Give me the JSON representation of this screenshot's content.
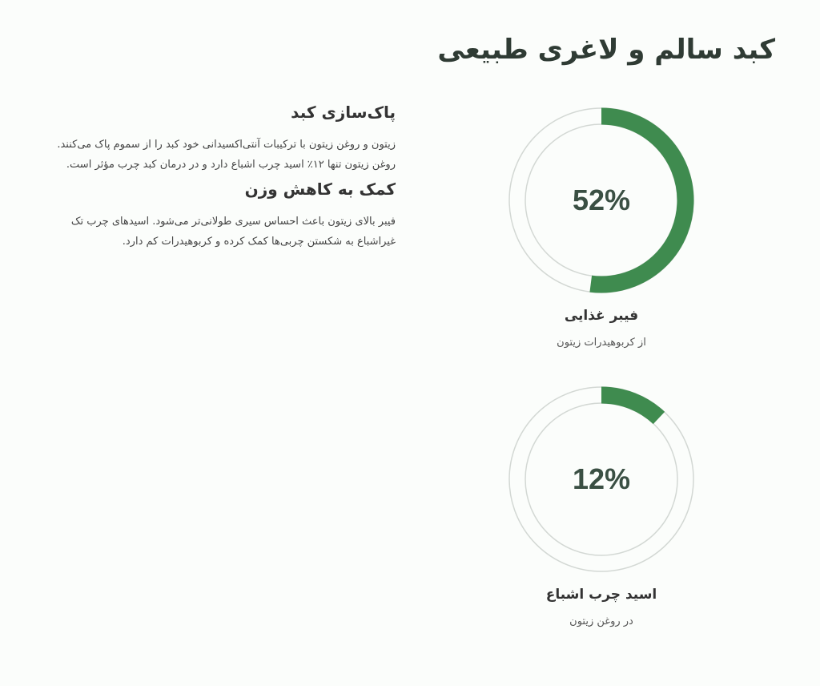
{
  "page": {
    "title": "کبد سالم و لاغری طبیعی"
  },
  "sections": [
    {
      "heading": "پاک‌سازی کبد",
      "body": "زیتون و روغن زیتون با ترکیبات آنتی‌اکسیدانی خود کبد را از سموم پاک می‌کنند. روغن زیتون تنها ۱۲٪ اسید چرب اشباع دارد و در درمان کبد چرب مؤثر است."
    },
    {
      "heading": "کمک به کاهش وزن",
      "body": "فیبر بالای زیتون باعث احساس سیری طولانی‌تر می‌شود. اسیدهای چرب تک غیراشباع به شکستن چربی‌ها کمک کرده و کربوهیدرات کم دارد."
    }
  ],
  "stats": [
    {
      "value": 52,
      "display": "52%",
      "label": "فیبر غذایی",
      "sub": "از کربوهیدرات زیتون"
    },
    {
      "value": 12,
      "display": "12%",
      "label": "اسید چرب اشباع",
      "sub": "در روغن زیتون"
    }
  ],
  "colors": {
    "accent": "#3f8b4f",
    "track": "#d3d8d4"
  }
}
